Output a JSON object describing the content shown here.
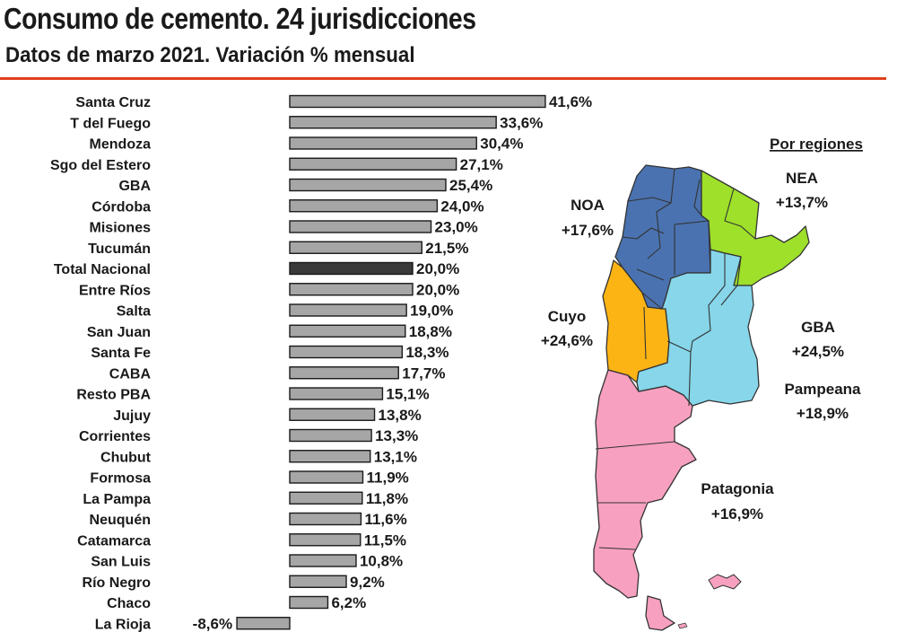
{
  "chart_data": {
    "type": "bar",
    "orientation": "horizontal",
    "title": "Consumo de cemento. 24 jurisdicciones",
    "subtitle": "Datos de marzo 2021. Variación % mensual",
    "categories": [
      "Santa Cruz",
      "T del Fuego",
      "Mendoza",
      "Sgo del Estero",
      "GBA",
      "Córdoba",
      "Misiones",
      "Tucumán",
      "Total Nacional",
      "Entre Ríos",
      "Salta",
      "San Juan",
      "Santa Fe",
      "CABA",
      "Resto PBA",
      "Jujuy",
      "Corrientes",
      "Chubut",
      "Formosa",
      "La Pampa",
      "Neuquén",
      "Catamarca",
      "San Luis",
      "Río Negro",
      "Chaco",
      "La Rioja"
    ],
    "values": [
      41.6,
      33.6,
      30.4,
      27.1,
      25.4,
      24.0,
      23.0,
      21.5,
      20.0,
      20.0,
      19.0,
      18.8,
      18.3,
      17.7,
      15.1,
      13.8,
      13.3,
      13.1,
      11.9,
      11.8,
      11.6,
      11.5,
      10.8,
      9.2,
      6.2,
      -8.6
    ],
    "value_labels": [
      "41,6%",
      "33,6%",
      "30,4%",
      "27,1%",
      "25,4%",
      "24,0%",
      "23,0%",
      "21,5%",
      "20,0%",
      "20,0%",
      "19,0%",
      "18,8%",
      "18,3%",
      "17,7%",
      "15,1%",
      "13,8%",
      "13,3%",
      "13,1%",
      "11,9%",
      "11,8%",
      "11,6%",
      "11,5%",
      "10,8%",
      "9,2%",
      "6,2%",
      "-8,6%"
    ],
    "highlight_category": "Total Nacional",
    "bar_color": "#a6a6a6",
    "highlight_color": "#3a3a3a"
  },
  "map": {
    "heading": "Por regiones",
    "regions": [
      {
        "name": "NOA",
        "value": "+17,6%",
        "color": "#4a72b0"
      },
      {
        "name": "NEA",
        "value": "+13,7%",
        "color": "#9ee02a"
      },
      {
        "name": "Cuyo",
        "value": "+24,6%",
        "color": "#fbb414"
      },
      {
        "name": "GBA",
        "value": "+24,5%",
        "color": "#87d6ea"
      },
      {
        "name": "Pampeana",
        "value": "+18,9%",
        "color": "#87d6ea"
      },
      {
        "name": "Patagonia",
        "value": "+16,9%",
        "color": "#f7a0c0"
      }
    ]
  },
  "rule_color": "#e0401f"
}
